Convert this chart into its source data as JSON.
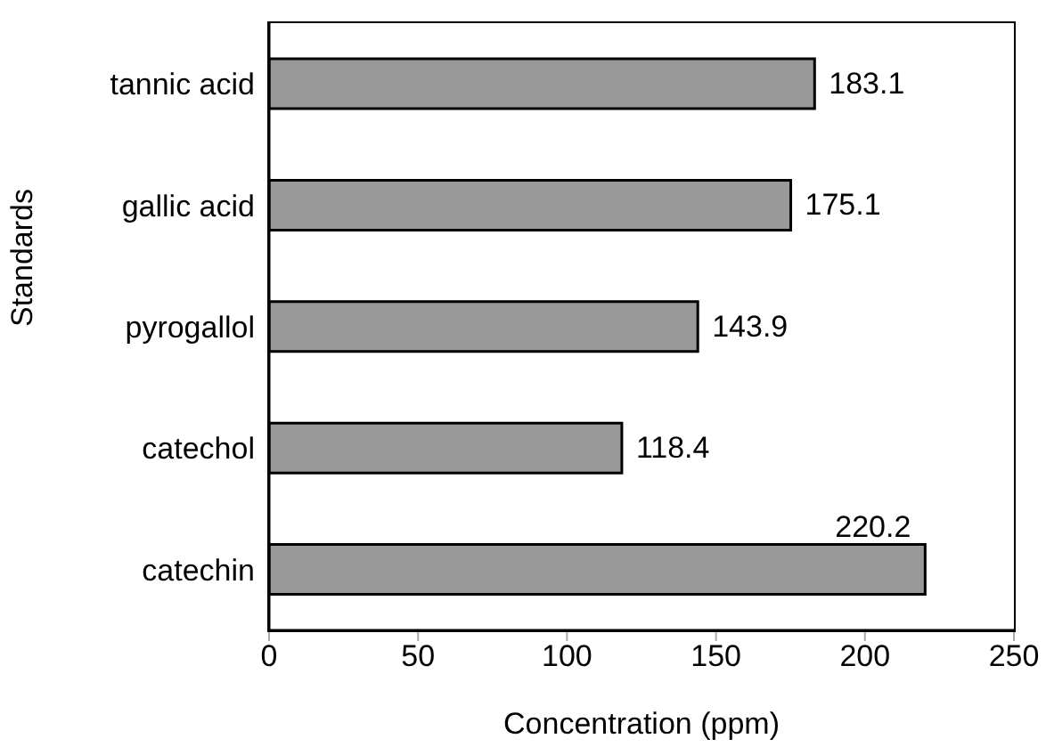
{
  "chart_data": {
    "type": "bar",
    "orientation": "horizontal",
    "categories": [
      "tannic acid",
      "gallic acid",
      "pyrogallol",
      "catechol",
      "catechin"
    ],
    "values": [
      183.1,
      175.1,
      143.9,
      118.4,
      220.2
    ],
    "color": "#999999",
    "data_labels": true,
    "xlabel": "Concentration (ppm)",
    "ylabel": "Standards",
    "xlim": [
      0,
      250
    ],
    "xticks": [
      0,
      50,
      100,
      150,
      200,
      250
    ]
  }
}
